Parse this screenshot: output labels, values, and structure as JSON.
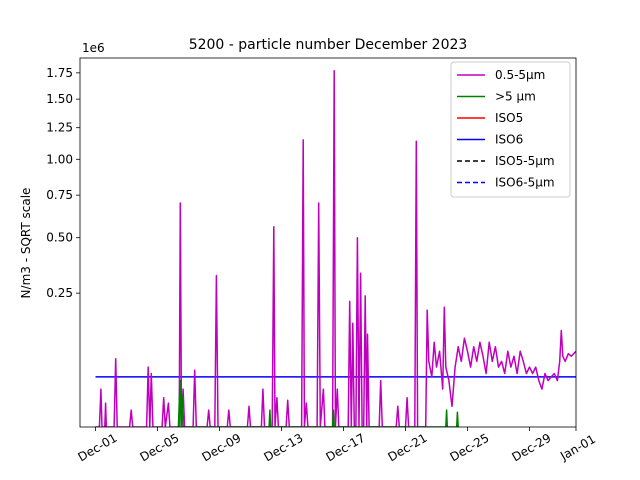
{
  "chart_data": {
    "type": "line",
    "title": "5200 - particle number December 2023",
    "ylabel": "N/m3 - SQRT scale",
    "xlabel": "",
    "y_scale": "sqrt",
    "y_offset_label": "1e6",
    "ylim": [
      0,
      1.9
    ],
    "xlim_days": [
      -1,
      31
    ],
    "grid": false,
    "legend_position": "top-right",
    "x_ticks": [
      {
        "day": 0,
        "label": "Dec-01"
      },
      {
        "day": 4,
        "label": "Dec-05"
      },
      {
        "day": 8,
        "label": "Dec-09"
      },
      {
        "day": 12,
        "label": "Dec-13"
      },
      {
        "day": 16,
        "label": "Dec-17"
      },
      {
        "day": 20,
        "label": "Dec-21"
      },
      {
        "day": 24,
        "label": "Dec-25"
      },
      {
        "day": 28,
        "label": "Dec-29"
      },
      {
        "day": 31,
        "label": "Jan-01"
      }
    ],
    "y_ticks": [
      {
        "value": 0.25,
        "label": "0.25"
      },
      {
        "value": 0.5,
        "label": "0.50"
      },
      {
        "value": 0.75,
        "label": "0.75"
      },
      {
        "value": 1.0,
        "label": "1.00"
      },
      {
        "value": 1.25,
        "label": "1.25"
      },
      {
        "value": 1.5,
        "label": "1.50"
      },
      {
        "value": 1.75,
        "label": "1.75"
      }
    ],
    "series": [
      {
        "name": "0.5-5µm",
        "color": "#bf00bf",
        "style": "solid",
        "points": [
          [
            0.0,
            0.0
          ],
          [
            0.25,
            0.0
          ],
          [
            0.35,
            0.02
          ],
          [
            0.42,
            0.0
          ],
          [
            0.6,
            0.0
          ],
          [
            0.65,
            0.008
          ],
          [
            0.7,
            0.0
          ],
          [
            1.2,
            0.0
          ],
          [
            1.3,
            0.065
          ],
          [
            1.4,
            0.0
          ],
          [
            2.2,
            0.0
          ],
          [
            2.3,
            0.004
          ],
          [
            2.4,
            0.0
          ],
          [
            3.3,
            0.0
          ],
          [
            3.4,
            0.05
          ],
          [
            3.5,
            0.0
          ],
          [
            3.6,
            0.04
          ],
          [
            3.7,
            0.0
          ],
          [
            4.3,
            0.0
          ],
          [
            4.4,
            0.012
          ],
          [
            4.5,
            0.0
          ],
          [
            4.7,
            0.008
          ],
          [
            4.8,
            0.0
          ],
          [
            5.4,
            0.0
          ],
          [
            5.47,
            0.7
          ],
          [
            5.55,
            0.0
          ],
          [
            5.65,
            0.02
          ],
          [
            5.75,
            0.0
          ],
          [
            6.3,
            0.0
          ],
          [
            6.4,
            0.045
          ],
          [
            6.5,
            0.0
          ],
          [
            7.2,
            0.0
          ],
          [
            7.3,
            0.004
          ],
          [
            7.4,
            0.0
          ],
          [
            7.7,
            0.0
          ],
          [
            7.8,
            0.32
          ],
          [
            7.9,
            0.0
          ],
          [
            8.5,
            0.0
          ],
          [
            8.6,
            0.004
          ],
          [
            8.7,
            0.0
          ],
          [
            9.8,
            0.0
          ],
          [
            9.9,
            0.006
          ],
          [
            10.0,
            0.0
          ],
          [
            10.7,
            0.0
          ],
          [
            10.8,
            0.02
          ],
          [
            10.9,
            0.0
          ],
          [
            11.4,
            0.0
          ],
          [
            11.5,
            0.56
          ],
          [
            11.58,
            0.0
          ],
          [
            11.7,
            0.012
          ],
          [
            11.8,
            0.0
          ],
          [
            12.3,
            0.0
          ],
          [
            12.4,
            0.01
          ],
          [
            12.5,
            0.0
          ],
          [
            13.3,
            0.0
          ],
          [
            13.4,
            1.15
          ],
          [
            13.48,
            0.0
          ],
          [
            13.6,
            0.008
          ],
          [
            13.7,
            0.0
          ],
          [
            14.3,
            0.0
          ],
          [
            14.4,
            0.7
          ],
          [
            14.5,
            0.0
          ],
          [
            14.7,
            0.02
          ],
          [
            14.8,
            0.0
          ],
          [
            15.3,
            0.0
          ],
          [
            15.4,
            1.77
          ],
          [
            15.48,
            0.0
          ],
          [
            15.6,
            0.02
          ],
          [
            15.7,
            0.0
          ],
          [
            16.3,
            0.0
          ],
          [
            16.4,
            0.22
          ],
          [
            16.5,
            0.0
          ],
          [
            16.6,
            0.15
          ],
          [
            16.7,
            0.0
          ],
          [
            16.8,
            0.0
          ],
          [
            16.9,
            0.5
          ],
          [
            17.0,
            0.0
          ],
          [
            17.1,
            0.33
          ],
          [
            17.2,
            0.0
          ],
          [
            17.3,
            0.0
          ],
          [
            17.4,
            0.24
          ],
          [
            17.5,
            0.0
          ],
          [
            17.55,
            0.12
          ],
          [
            17.65,
            0.0
          ],
          [
            18.3,
            0.0
          ],
          [
            18.4,
            0.03
          ],
          [
            18.5,
            0.0
          ],
          [
            19.4,
            0.0
          ],
          [
            19.5,
            0.006
          ],
          [
            19.6,
            0.0
          ],
          [
            20.0,
            0.0
          ],
          [
            20.1,
            0.012
          ],
          [
            20.2,
            0.0
          ],
          [
            20.6,
            0.0
          ],
          [
            20.7,
            1.14
          ],
          [
            20.78,
            0.0
          ],
          [
            21.3,
            0.0
          ],
          [
            21.4,
            0.19
          ],
          [
            21.5,
            0.06
          ],
          [
            21.7,
            0.035
          ],
          [
            21.85,
            0.1
          ],
          [
            22.0,
            0.05
          ],
          [
            22.2,
            0.08
          ],
          [
            22.4,
            0.02
          ],
          [
            22.5,
            0.2
          ],
          [
            22.6,
            0.05
          ],
          [
            22.8,
            0.03
          ],
          [
            23.0,
            0.006
          ],
          [
            23.2,
            0.05
          ],
          [
            23.4,
            0.09
          ],
          [
            23.6,
            0.06
          ],
          [
            23.8,
            0.11
          ],
          [
            24.0,
            0.08
          ],
          [
            24.2,
            0.05
          ],
          [
            24.4,
            0.09
          ],
          [
            24.6,
            0.06
          ],
          [
            24.8,
            0.1
          ],
          [
            25.0,
            0.07
          ],
          [
            25.2,
            0.04
          ],
          [
            25.4,
            0.1
          ],
          [
            25.6,
            0.06
          ],
          [
            25.8,
            0.09
          ],
          [
            26.0,
            0.05
          ],
          [
            26.2,
            0.06
          ],
          [
            26.4,
            0.04
          ],
          [
            26.6,
            0.08
          ],
          [
            26.8,
            0.05
          ],
          [
            27.0,
            0.07
          ],
          [
            27.2,
            0.04
          ],
          [
            27.4,
            0.08
          ],
          [
            27.6,
            0.06
          ],
          [
            27.8,
            0.04
          ],
          [
            28.0,
            0.05
          ],
          [
            28.2,
            0.04
          ],
          [
            28.4,
            0.05
          ],
          [
            28.6,
            0.03
          ],
          [
            28.8,
            0.02
          ],
          [
            29.0,
            0.04
          ],
          [
            29.2,
            0.03
          ],
          [
            29.4,
            0.035
          ],
          [
            29.6,
            0.04
          ],
          [
            29.8,
            0.03
          ],
          [
            29.95,
            0.06
          ],
          [
            30.05,
            0.13
          ],
          [
            30.15,
            0.07
          ],
          [
            30.3,
            0.06
          ],
          [
            30.5,
            0.075
          ],
          [
            30.7,
            0.07
          ],
          [
            31.0,
            0.08
          ]
        ]
      },
      {
        "name": ">5 µm",
        "color": "#008000",
        "style": "solid",
        "points": [
          [
            5.35,
            0.0
          ],
          [
            5.45,
            0.03
          ],
          [
            5.52,
            0.0
          ],
          [
            5.58,
            0.015
          ],
          [
            5.65,
            0.0
          ],
          [
            11.2,
            0.0
          ],
          [
            11.25,
            0.004
          ],
          [
            11.3,
            0.0
          ],
          [
            15.3,
            0.0
          ],
          [
            15.35,
            0.004
          ],
          [
            15.4,
            0.0
          ],
          [
            22.6,
            0.0
          ],
          [
            22.65,
            0.004
          ],
          [
            22.7,
            0.0
          ],
          [
            23.3,
            0.0
          ],
          [
            23.35,
            0.003
          ],
          [
            23.4,
            0.0
          ]
        ]
      },
      {
        "name": "ISO5",
        "color": "#ff0000",
        "style": "solid",
        "points": []
      },
      {
        "name": "ISO6",
        "color": "#0000ff",
        "style": "solid",
        "points": [
          [
            0.0,
            0.035
          ],
          [
            31.0,
            0.035
          ]
        ]
      },
      {
        "name": "ISO5-5µm",
        "color": "#000000",
        "style": "dashed",
        "points": []
      },
      {
        "name": "ISO6-5µm",
        "color": "#0000ff",
        "style": "dashed",
        "points": []
      }
    ]
  }
}
